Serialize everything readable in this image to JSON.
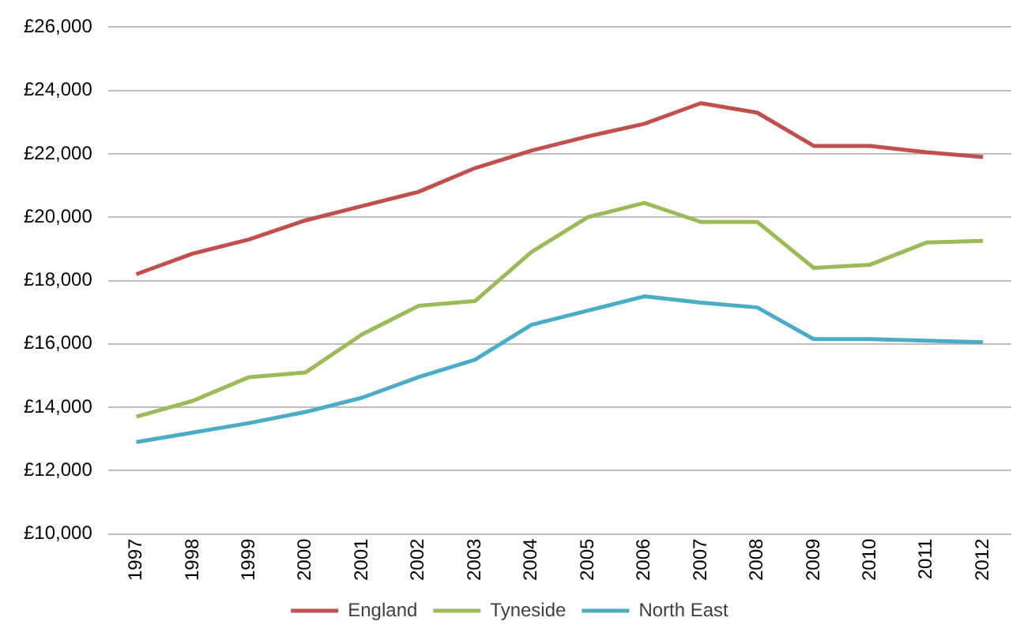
{
  "chart_data": {
    "type": "line",
    "categories": [
      "1997",
      "1998",
      "1999",
      "2000",
      "2001",
      "2002",
      "2003",
      "2004",
      "2005",
      "2006",
      "2007",
      "2008",
      "2009",
      "2010",
      "2011",
      "2012"
    ],
    "series": [
      {
        "name": "England",
        "color": "#c0504d",
        "values": [
          18200,
          18850,
          19300,
          19900,
          20350,
          20800,
          21550,
          22100,
          22550,
          22950,
          23600,
          23300,
          22250,
          22250,
          22050,
          21900
        ]
      },
      {
        "name": "Tyneside",
        "color": "#9bbb59",
        "values": [
          13700,
          14200,
          14950,
          15100,
          16300,
          17200,
          17350,
          18900,
          20000,
          20450,
          19850,
          19850,
          18400,
          18500,
          19200,
          19250
        ]
      },
      {
        "name": "North East",
        "color": "#4bacc6",
        "values": [
          12900,
          13200,
          13500,
          13850,
          14300,
          14950,
          15500,
          16600,
          17050,
          17500,
          17300,
          17150,
          16150,
          16150,
          16100,
          16050
        ]
      }
    ],
    "ylim": [
      10000,
      26000
    ],
    "yticks": [
      {
        "value": 10000,
        "label": "£10,000"
      },
      {
        "value": 12000,
        "label": "£12,000"
      },
      {
        "value": 14000,
        "label": "£14,000"
      },
      {
        "value": 16000,
        "label": "£16,000"
      },
      {
        "value": 18000,
        "label": "£18,000"
      },
      {
        "value": 20000,
        "label": "£20,000"
      },
      {
        "value": 22000,
        "label": "£22,000"
      },
      {
        "value": 24000,
        "label": "£24,000"
      },
      {
        "value": 26000,
        "label": "£26,000"
      }
    ],
    "grid": "y",
    "legend": "bottom",
    "marker": "none",
    "line_style": "solid"
  }
}
